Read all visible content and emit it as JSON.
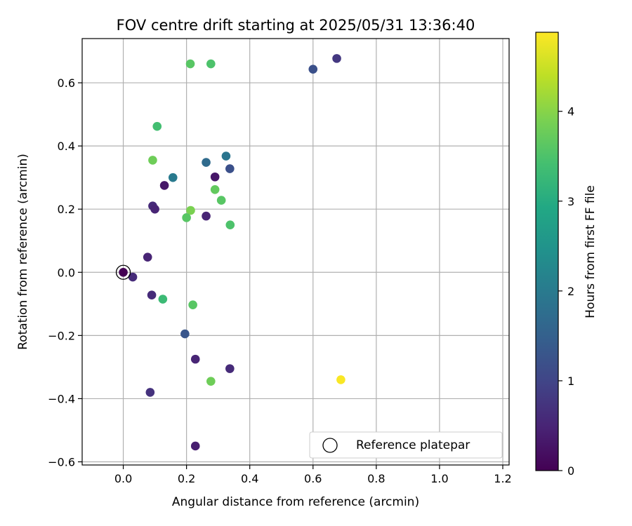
{
  "chart_data": {
    "type": "scatter",
    "title": "FOV centre drift starting at 2025/05/31 13:36:40",
    "xlabel": "Angular distance from reference (arcmin)",
    "ylabel": "Rotation from reference (arcmin)",
    "xlim": [
      -0.13,
      1.22
    ],
    "ylim": [
      -0.61,
      0.74
    ],
    "xticks": [
      0.0,
      0.2,
      0.4,
      0.6,
      0.8,
      1.0,
      1.2
    ],
    "yticks": [
      -0.6,
      -0.4,
      -0.2,
      0.0,
      0.2,
      0.4,
      0.6
    ],
    "xtick_labels": [
      "0.0",
      "0.2",
      "0.4",
      "0.6",
      "0.8",
      "1.0",
      "1.2"
    ],
    "ytick_labels": [
      "−0.6",
      "−0.4",
      "−0.2",
      "0.0",
      "0.2",
      "0.4",
      "0.6"
    ],
    "grid": true,
    "colormap": "viridis",
    "colorbar": {
      "label": "Hours from first FF file",
      "min": 0,
      "max": 4.88,
      "ticks": [
        0,
        1,
        2,
        3,
        4
      ],
      "tick_labels": [
        "0",
        "1",
        "2",
        "3",
        "4"
      ]
    },
    "legend": {
      "placement": "lower-right",
      "label": "Reference platepar"
    },
    "reference_point": {
      "x": 0.0,
      "y": 0.0
    },
    "points": [
      {
        "x": 0.0,
        "y": 0.0,
        "hours": 0.0
      },
      {
        "x": 0.03,
        "y": -0.015,
        "hours": 0.6
      },
      {
        "x": 0.077,
        "y": 0.048,
        "hours": 0.5
      },
      {
        "x": 0.09,
        "y": -0.072,
        "hours": 0.6
      },
      {
        "x": 0.085,
        "y": -0.38,
        "hours": 0.7
      },
      {
        "x": 0.093,
        "y": 0.21,
        "hours": 0.6
      },
      {
        "x": 0.1,
        "y": 0.2,
        "hours": 0.5
      },
      {
        "x": 0.13,
        "y": 0.275,
        "hours": 0.3
      },
      {
        "x": 0.195,
        "y": -0.195,
        "hours": 1.3
      },
      {
        "x": 0.228,
        "y": -0.275,
        "hours": 0.5
      },
      {
        "x": 0.228,
        "y": -0.55,
        "hours": 0.4
      },
      {
        "x": 0.262,
        "y": 0.178,
        "hours": 0.5
      },
      {
        "x": 0.29,
        "y": 0.302,
        "hours": 0.3
      },
      {
        "x": 0.337,
        "y": -0.305,
        "hours": 0.6
      },
      {
        "x": 0.337,
        "y": 0.328,
        "hours": 1.2
      },
      {
        "x": 0.6,
        "y": 0.643,
        "hours": 1.2
      },
      {
        "x": 0.675,
        "y": 0.677,
        "hours": 0.8
      },
      {
        "x": 0.157,
        "y": 0.3,
        "hours": 2.0
      },
      {
        "x": 0.262,
        "y": 0.348,
        "hours": 1.7
      },
      {
        "x": 0.325,
        "y": 0.368,
        "hours": 1.9
      },
      {
        "x": 0.107,
        "y": 0.462,
        "hours": 3.4
      },
      {
        "x": 0.212,
        "y": 0.66,
        "hours": 3.6
      },
      {
        "x": 0.277,
        "y": 0.66,
        "hours": 3.5
      },
      {
        "x": 0.093,
        "y": 0.355,
        "hours": 3.8
      },
      {
        "x": 0.29,
        "y": 0.262,
        "hours": 3.7
      },
      {
        "x": 0.31,
        "y": 0.228,
        "hours": 3.6
      },
      {
        "x": 0.213,
        "y": 0.196,
        "hours": 3.9
      },
      {
        "x": 0.2,
        "y": 0.173,
        "hours": 3.6
      },
      {
        "x": 0.338,
        "y": 0.15,
        "hours": 3.5
      },
      {
        "x": 0.125,
        "y": -0.085,
        "hours": 3.3
      },
      {
        "x": 0.22,
        "y": -0.103,
        "hours": 3.6
      },
      {
        "x": 0.277,
        "y": -0.345,
        "hours": 3.8
      },
      {
        "x": 0.688,
        "y": -0.34,
        "hours": 4.85
      }
    ]
  }
}
